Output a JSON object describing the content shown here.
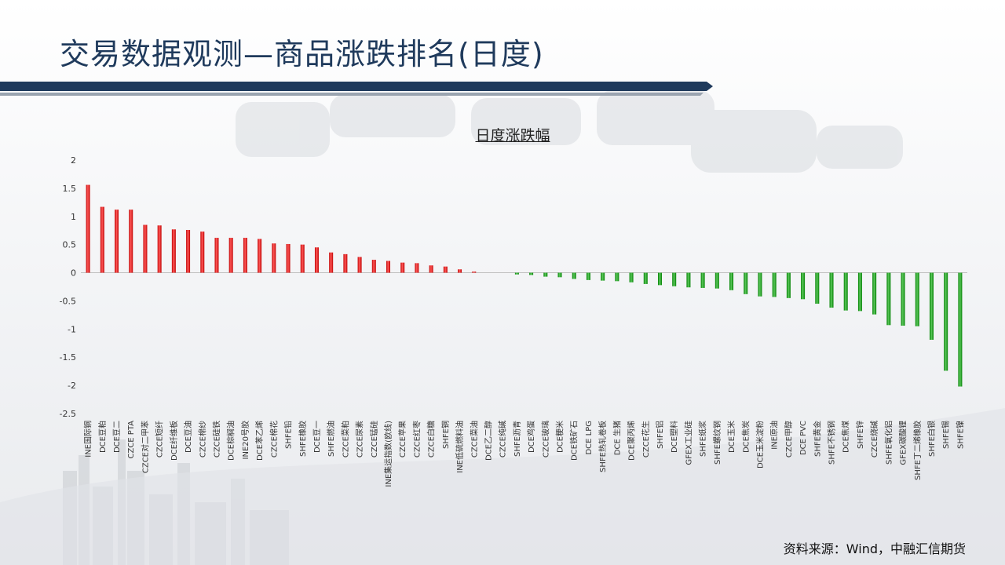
{
  "header": {
    "title": "交易数据观测—商品涨跌排名(日度)"
  },
  "footer": {
    "source": "资料来源：Wind，中融汇信期货"
  },
  "colors": {
    "up": "#c00000",
    "down": "#008000",
    "title": "#1f3a5c"
  },
  "chart_data": {
    "type": "bar",
    "title": "日度涨跌幅",
    "xlabel": "",
    "ylabel": "",
    "ylim": [
      -2.5,
      2
    ],
    "yticks": [
      2,
      1.5,
      1,
      0.5,
      0,
      -0.5,
      -1,
      -1.5,
      -2,
      -2.5
    ],
    "grid": false,
    "categories": [
      "INE国际铜",
      "DCE豆粕",
      "DCE豆二",
      "CZCE PTA",
      "CZCE对二甲苯",
      "CZCE短纤",
      "DCE纤维板",
      "DCE豆油",
      "CZCE棉纱",
      "CZCE硅铁",
      "DCE棕榈油",
      "INE20号胶",
      "DCE苯乙烯",
      "CZCE棉花",
      "SHFE铅",
      "SHFE橡胶",
      "DCE豆一",
      "SHFE燃油",
      "CZCE菜粕",
      "CZCE尿素",
      "CZCE锰硅",
      "INE集运指数(欧线)",
      "CZCE苹果",
      "CZCE红枣",
      "CZCE白糖",
      "SHFE铜",
      "INE低硫燃料油",
      "CZCE菜油",
      "DCE乙二醇",
      "CZCE纯碱",
      "SHFE沥青",
      "DCE鸡蛋",
      "CZCE玻璃",
      "DCE粳米",
      "DCE铁矿石",
      "DCE LPG",
      "SHFE热轧卷板",
      "DCE 生猪",
      "DCE聚丙烯",
      "CZCE花生",
      "SHFE铝",
      "DCE塑料",
      "GFEX工业硅",
      "SHFE纸浆",
      "SHFE螺纹钢",
      "DCE玉米",
      "DCE焦炭",
      "DCE玉米淀粉",
      "INE原油",
      "CZCE甲醇",
      "DCE PVC",
      "SHFE黄金",
      "SHFE不锈钢",
      "DCE焦煤",
      "SHFE锌",
      "CZCE烧碱",
      "SHFE氧化铝",
      "GFEX碳酸锂",
      "SHFE丁二烯橡胶",
      "SHFE白银",
      "SHFE锡",
      "SHFE镍"
    ],
    "values": [
      1.56,
      1.17,
      1.12,
      1.12,
      0.85,
      0.84,
      0.77,
      0.76,
      0.73,
      0.62,
      0.62,
      0.62,
      0.6,
      0.52,
      0.51,
      0.5,
      0.45,
      0.36,
      0.33,
      0.28,
      0.23,
      0.21,
      0.18,
      0.17,
      0.13,
      0.11,
      0.06,
      0.02,
      0.0,
      0.0,
      -0.03,
      -0.04,
      -0.07,
      -0.08,
      -0.11,
      -0.13,
      -0.14,
      -0.15,
      -0.17,
      -0.2,
      -0.22,
      -0.24,
      -0.26,
      -0.27,
      -0.28,
      -0.31,
      -0.38,
      -0.42,
      -0.43,
      -0.45,
      -0.47,
      -0.55,
      -0.62,
      -0.67,
      -0.68,
      -0.74,
      -0.93,
      -0.94,
      -0.95,
      -1.19,
      -1.74,
      -2.02
    ]
  }
}
